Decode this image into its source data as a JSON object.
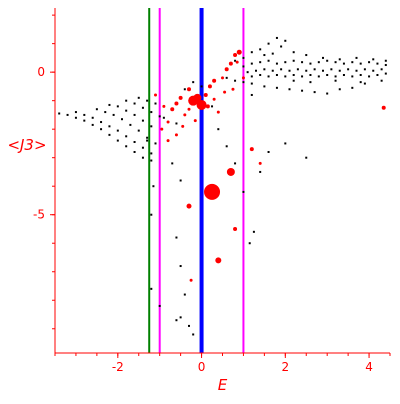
{
  "chart_data": {
    "type": "scatter",
    "xlabel": "E",
    "ylabel": "<J3>",
    "xlim": [
      -3.5,
      4.5
    ],
    "ylim": [
      -9.85,
      2.25
    ],
    "x_ticks": [
      {
        "value": -2,
        "label": "-2"
      },
      {
        "value": 0,
        "label": "0"
      },
      {
        "value": 2,
        "label": "2"
      },
      {
        "value": 4,
        "label": "4"
      }
    ],
    "y_ticks": [
      {
        "value": 0,
        "label": "0"
      },
      {
        "value": -5,
        "label": "-5"
      }
    ],
    "grid": false,
    "legend": "none",
    "vertical_lines": [
      {
        "x": -1.25,
        "color": "#008000"
      },
      {
        "x": -1.0,
        "color": "#ff00ff"
      },
      {
        "x": 0.0,
        "color": "#0000ff"
      },
      {
        "x": 1.0,
        "color": "#ff00ff"
      }
    ],
    "series": [
      {
        "color": "#000000",
        "points": [
          [
            -3.4,
            -1.45
          ],
          [
            -3.2,
            -1.5
          ],
          [
            -3.0,
            -1.6
          ],
          [
            -2.8,
            -1.7
          ],
          [
            -2.6,
            -1.85
          ],
          [
            -2.4,
            -2.0
          ],
          [
            -2.2,
            -2.2
          ],
          [
            -2.0,
            -2.4
          ],
          [
            -1.8,
            -2.6
          ],
          [
            -1.6,
            -2.8
          ],
          [
            -1.4,
            -3.0
          ],
          [
            -3.0,
            -1.4
          ],
          [
            -2.8,
            -1.5
          ],
          [
            -2.6,
            -1.6
          ],
          [
            -2.4,
            -1.75
          ],
          [
            -2.2,
            -1.9
          ],
          [
            -2.0,
            -2.05
          ],
          [
            -1.8,
            -2.25
          ],
          [
            -1.6,
            -2.45
          ],
          [
            -1.4,
            -2.65
          ],
          [
            -1.2,
            -2.85
          ],
          [
            -2.5,
            -1.3
          ],
          [
            -2.3,
            -1.4
          ],
          [
            -2.1,
            -1.5
          ],
          [
            -1.9,
            -1.65
          ],
          [
            -1.7,
            -1.85
          ],
          [
            -1.5,
            -2.05
          ],
          [
            -1.3,
            -2.3
          ],
          [
            -1.1,
            -2.5
          ],
          [
            -2.2,
            -1.15
          ],
          [
            -2.0,
            -1.2
          ],
          [
            -1.8,
            -1.35
          ],
          [
            -1.6,
            -1.5
          ],
          [
            -1.4,
            -1.7
          ],
          [
            -1.2,
            -1.9
          ],
          [
            -1.8,
            -1.0
          ],
          [
            -1.6,
            -1.1
          ],
          [
            -1.4,
            -1.25
          ],
          [
            -1.2,
            -1.4
          ],
          [
            -1.0,
            -1.55
          ],
          [
            -1.5,
            -0.9
          ],
          [
            -1.3,
            -1.0
          ],
          [
            -1.1,
            -1.1
          ],
          [
            -0.9,
            -1.2
          ],
          [
            -1.3,
            -2.4
          ],
          [
            -1.2,
            -3.1
          ],
          [
            -1.15,
            -4.0
          ],
          [
            -1.2,
            -5.0
          ],
          [
            -0.7,
            -3.2
          ],
          [
            -0.5,
            -3.8
          ],
          [
            -0.6,
            -5.8
          ],
          [
            -0.5,
            -6.8
          ],
          [
            -0.4,
            -7.8
          ],
          [
            -0.5,
            -8.6
          ],
          [
            -0.6,
            -8.7
          ],
          [
            -0.3,
            -8.9
          ],
          [
            -0.2,
            -9.2
          ],
          [
            -1.0,
            -8.2
          ],
          [
            -1.2,
            -7.6
          ],
          [
            0.25,
            -1.2
          ],
          [
            0.4,
            -2.0
          ],
          [
            0.6,
            -2.6
          ],
          [
            0.8,
            -3.2
          ],
          [
            1.0,
            -4.2
          ],
          [
            1.15,
            -6.0
          ],
          [
            1.25,
            -5.6
          ],
          [
            1.4,
            -3.5
          ],
          [
            1.6,
            -2.8
          ],
          [
            2.0,
            -2.5
          ],
          [
            2.5,
            -3.0
          ],
          [
            1.2,
            -0.8
          ],
          [
            0.8,
            0.4
          ],
          [
            1.0,
            0.5
          ],
          [
            1.2,
            0.7
          ],
          [
            1.4,
            0.8
          ],
          [
            1.6,
            1.0
          ],
          [
            1.8,
            1.2
          ],
          [
            2.0,
            1.1
          ],
          [
            1.9,
            0.9
          ],
          [
            0.6,
            -0.2
          ],
          [
            0.8,
            -0.3
          ],
          [
            1.0,
            -0.35
          ],
          [
            1.2,
            -0.4
          ],
          [
            1.5,
            -0.5
          ],
          [
            1.8,
            -0.55
          ],
          [
            2.1,
            -0.6
          ],
          [
            2.4,
            -0.65
          ],
          [
            2.7,
            -0.7
          ],
          [
            3.0,
            -0.75
          ],
          [
            3.3,
            -0.6
          ],
          [
            3.6,
            -0.55
          ],
          [
            3.9,
            -0.4
          ],
          [
            1.0,
            0.2
          ],
          [
            1.2,
            0.3
          ],
          [
            1.4,
            0.35
          ],
          [
            1.6,
            0.4
          ],
          [
            1.8,
            0.3
          ],
          [
            2.0,
            0.35
          ],
          [
            2.2,
            0.4
          ],
          [
            2.4,
            0.35
          ],
          [
            2.6,
            0.3
          ],
          [
            2.8,
            0.35
          ],
          [
            3.0,
            0.4
          ],
          [
            3.2,
            0.35
          ],
          [
            3.4,
            0.3
          ],
          [
            3.6,
            0.35
          ],
          [
            3.8,
            0.3
          ],
          [
            4.0,
            0.35
          ],
          [
            4.2,
            0.3
          ],
          [
            4.4,
            0.25
          ],
          [
            1.1,
            0.0
          ],
          [
            1.3,
            0.05
          ],
          [
            1.5,
            0.1
          ],
          [
            1.7,
            0.05
          ],
          [
            1.9,
            0.1
          ],
          [
            2.1,
            0.05
          ],
          [
            2.3,
            0.1
          ],
          [
            2.5,
            0.05
          ],
          [
            2.7,
            0.1
          ],
          [
            2.9,
            0.05
          ],
          [
            3.1,
            0.1
          ],
          [
            3.3,
            0.05
          ],
          [
            3.5,
            0.1
          ],
          [
            3.7,
            0.05
          ],
          [
            3.9,
            0.1
          ],
          [
            4.1,
            0.05
          ],
          [
            4.3,
            0.1
          ],
          [
            1.2,
            -0.15
          ],
          [
            1.4,
            -0.1
          ],
          [
            1.6,
            -0.15
          ],
          [
            1.8,
            -0.1
          ],
          [
            2.0,
            -0.15
          ],
          [
            2.2,
            -0.1
          ],
          [
            2.4,
            -0.15
          ],
          [
            2.6,
            -0.1
          ],
          [
            2.8,
            -0.15
          ],
          [
            3.0,
            -0.1
          ],
          [
            3.2,
            -0.15
          ],
          [
            3.4,
            -0.1
          ],
          [
            3.6,
            -0.15
          ],
          [
            3.8,
            -0.1
          ],
          [
            4.0,
            -0.15
          ],
          [
            4.2,
            -0.1
          ],
          [
            4.4,
            -0.05
          ],
          [
            1.5,
            0.6
          ],
          [
            1.7,
            0.65
          ],
          [
            2.2,
            0.7
          ],
          [
            2.5,
            0.6
          ],
          [
            2.9,
            0.5
          ],
          [
            3.3,
            0.45
          ],
          [
            3.7,
            0.5
          ],
          [
            4.1,
            0.45
          ],
          [
            4.4,
            0.4
          ],
          [
            2.2,
            -0.3
          ],
          [
            2.6,
            -0.35
          ],
          [
            3.2,
            -0.3
          ],
          [
            3.8,
            -0.35
          ],
          [
            4.3,
            -0.3
          ],
          [
            -0.2,
            -0.35
          ],
          [
            0.0,
            -0.5
          ],
          [
            -0.4,
            -0.6
          ],
          [
            -0.1,
            -0.8
          ],
          [
            -0.6,
            -1.8
          ],
          [
            -0.9,
            -1.6
          ]
        ]
      },
      {
        "color": "#ff0000",
        "points": [
          [
            -0.2,
            -1.0,
            5
          ],
          [
            0.0,
            -1.15,
            5
          ],
          [
            -0.1,
            -0.9,
            4
          ],
          [
            0.25,
            -4.2,
            8
          ],
          [
            0.7,
            -3.5,
            4
          ],
          [
            0.4,
            -6.6,
            3
          ],
          [
            -0.3,
            -4.7,
            2.5
          ],
          [
            1.2,
            -2.7,
            2
          ],
          [
            0.8,
            -5.5,
            2
          ],
          [
            -0.25,
            -7.3,
            1.5
          ],
          [
            -0.5,
            -0.9,
            2
          ],
          [
            -0.6,
            -1.1,
            2
          ],
          [
            -0.7,
            -1.3,
            2
          ],
          [
            -0.9,
            -1.2,
            1.5
          ],
          [
            -0.4,
            -1.5,
            1.5
          ],
          [
            -0.8,
            -1.75,
            1.5
          ],
          [
            -0.6,
            -2.2,
            1.5
          ],
          [
            -0.95,
            -2.0,
            1.5
          ],
          [
            -0.3,
            -0.6,
            2
          ],
          [
            0.1,
            -0.8,
            2
          ],
          [
            0.2,
            -0.5,
            2
          ],
          [
            0.3,
            -0.3,
            2
          ],
          [
            0.5,
            -0.2,
            1.5
          ],
          [
            0.6,
            0.1,
            2
          ],
          [
            0.7,
            0.3,
            2
          ],
          [
            0.8,
            0.6,
            2
          ],
          [
            0.9,
            0.7,
            2.5
          ],
          [
            0.85,
            0.35,
            1.5
          ],
          [
            0.3,
            -0.95,
            1.5
          ],
          [
            -0.3,
            -1.3,
            1.5
          ],
          [
            -1.1,
            -0.8,
            1.5
          ],
          [
            -0.8,
            -2.4,
            1.5
          ],
          [
            -0.45,
            -1.9,
            1.5
          ],
          [
            1.4,
            -3.2,
            1.5
          ],
          [
            0.4,
            -1.4,
            1.5
          ],
          [
            0.75,
            -0.6,
            1.5
          ],
          [
            1.0,
            -0.2,
            1.5
          ],
          [
            4.35,
            -1.25,
            2
          ],
          [
            0.55,
            -0.7,
            1.5
          ],
          [
            -0.15,
            -1.7,
            1.5
          ],
          [
            0.15,
            -1.2,
            2
          ]
        ]
      }
    ]
  }
}
